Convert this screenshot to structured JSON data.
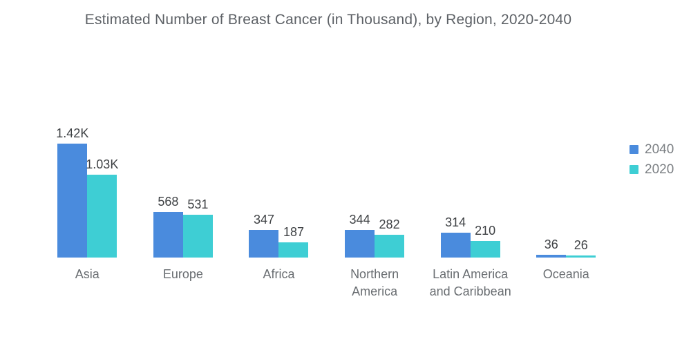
{
  "chart_data": {
    "type": "bar",
    "title": "Estimated Number of Breast Cancer (in Thousand), by Region, 2020-2040",
    "unit": "Thousand",
    "categories": [
      "Asia",
      "Europe",
      "Africa",
      "Northern America",
      "Latin America and Caribbean",
      "Oceania"
    ],
    "series": [
      {
        "name": "2040",
        "color": "#4A8BDD",
        "values": [
          1420,
          568,
          347,
          344,
          314,
          36
        ],
        "labels": [
          "1.42K",
          "568",
          "347",
          "344",
          "314",
          "36"
        ]
      },
      {
        "name": "2020",
        "color": "#3ECED4",
        "values": [
          1030,
          531,
          187,
          282,
          210,
          26
        ],
        "labels": [
          "1.03K",
          "531",
          "187",
          "282",
          "210",
          "26"
        ]
      }
    ],
    "legend_position": "right",
    "grid": false,
    "y_axis_visible": false,
    "ylim": [
      0,
      1500
    ]
  }
}
